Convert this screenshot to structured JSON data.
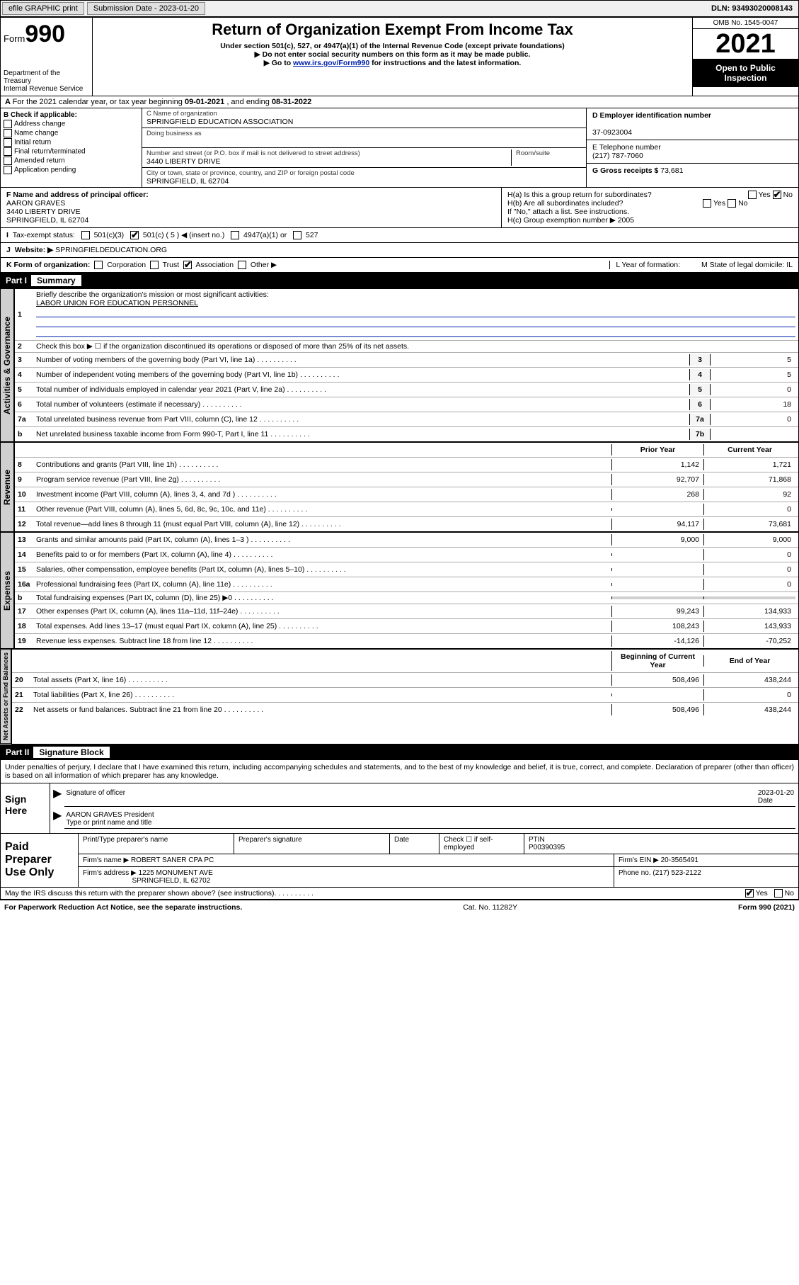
{
  "topbar": {
    "efile": "efile GRAPHIC print",
    "submission_label": "Submission Date - ",
    "submission_date": "2023-01-20",
    "dln_label": "DLN: ",
    "dln": "93493020008143"
  },
  "header": {
    "form_word": "Form",
    "form_num": "990",
    "dept": "Department of the Treasury",
    "irs": "Internal Revenue Service",
    "title": "Return of Organization Exempt From Income Tax",
    "sub1": "Under section 501(c), 527, or 4947(a)(1) of the Internal Revenue Code (except private foundations)",
    "sub2": "Do not enter social security numbers on this form as it may be made public.",
    "sub3_pre": "Go to ",
    "sub3_link": "www.irs.gov/Form990",
    "sub3_post": " for instructions and the latest information.",
    "omb": "OMB No. 1545-0047",
    "year": "2021",
    "open": "Open to Public Inspection"
  },
  "lineA": {
    "text": "For the 2021 calendar year, or tax year beginning ",
    "begin": "09-01-2021",
    "mid": " , and ending ",
    "end": "08-31-2022"
  },
  "boxB": {
    "title": "B Check if applicable:",
    "opts": [
      "Address change",
      "Name change",
      "Initial return",
      "Final return/terminated",
      "Amended return",
      "Application pending"
    ]
  },
  "boxC": {
    "name_label": "C Name of organization",
    "name": "SPRINGFIELD EDUCATION ASSOCIATION",
    "dba_label": "Doing business as",
    "street_label": "Number and street (or P.O. box if mail is not delivered to street address)",
    "room_label": "Room/suite",
    "street": "3440 LIBERTY DRIVE",
    "city_label": "City or town, state or province, country, and ZIP or foreign postal code",
    "city": "SPRINGFIELD, IL  62704"
  },
  "boxD": {
    "ein_label": "D Employer identification number",
    "ein": "37-0923004",
    "phone_label": "E Telephone number",
    "phone": "(217) 787-7060",
    "gross_label": "G Gross receipts $ ",
    "gross": "73,681"
  },
  "boxF": {
    "label": "F Name and address of principal officer:",
    "name": "AARON GRAVES",
    "street": "3440 LIBERTY DRIVE",
    "city": "SPRINGFIELD, IL  62704"
  },
  "boxH": {
    "a": "H(a)  Is this a group return for subordinates?",
    "a_yes": "Yes",
    "a_no": "No",
    "b": "H(b)  Are all subordinates included?",
    "b_note": "If \"No,\" attach a list. See instructions.",
    "c": "H(c)  Group exemption number ▶ ",
    "c_val": "2005"
  },
  "boxI": {
    "label": "Tax-exempt status:",
    "o1": "501(c)(3)",
    "o2": "501(c) ( 5 ) ◀ (insert no.)",
    "o3": "4947(a)(1) or",
    "o4": "527"
  },
  "boxJ": {
    "label": "Website: ▶ ",
    "val": "SPRINGFIELDEDUCATION.ORG"
  },
  "boxK": {
    "label": "K Form of organization:",
    "opts": [
      "Corporation",
      "Trust",
      "Association",
      "Other ▶"
    ],
    "checked_idx": 2,
    "L": "L Year of formation:",
    "M": "M State of legal domicile: IL"
  },
  "part1": {
    "num": "Part I",
    "title": "Summary"
  },
  "gov": {
    "tab": "Activities & Governance",
    "l1": "Briefly describe the organization's mission or most significant activities:",
    "l1v": "LABOR UNION FOR EDUCATION PERSONNEL",
    "l2": "Check this box ▶ ☐  if the organization discontinued its operations or disposed of more than 25% of its net assets.",
    "lines": [
      {
        "n": "3",
        "t": "Number of voting members of the governing body (Part VI, line 1a)",
        "box": "3",
        "v": "5"
      },
      {
        "n": "4",
        "t": "Number of independent voting members of the governing body (Part VI, line 1b)",
        "box": "4",
        "v": "5"
      },
      {
        "n": "5",
        "t": "Total number of individuals employed in calendar year 2021 (Part V, line 2a)",
        "box": "5",
        "v": "0"
      },
      {
        "n": "6",
        "t": "Total number of volunteers (estimate if necessary)",
        "box": "6",
        "v": "18"
      },
      {
        "n": "7a",
        "t": "Total unrelated business revenue from Part VIII, column (C), line 12",
        "box": "7a",
        "v": "0"
      },
      {
        "n": "b",
        "t": "Net unrelated business taxable income from Form 990-T, Part I, line 11",
        "box": "7b",
        "v": ""
      }
    ]
  },
  "rev": {
    "tab": "Revenue",
    "hprior": "Prior Year",
    "hcurr": "Current Year",
    "lines": [
      {
        "n": "8",
        "t": "Contributions and grants (Part VIII, line 1h)",
        "p": "1,142",
        "c": "1,721"
      },
      {
        "n": "9",
        "t": "Program service revenue (Part VIII, line 2g)",
        "p": "92,707",
        "c": "71,868"
      },
      {
        "n": "10",
        "t": "Investment income (Part VIII, column (A), lines 3, 4, and 7d )",
        "p": "268",
        "c": "92"
      },
      {
        "n": "11",
        "t": "Other revenue (Part VIII, column (A), lines 5, 6d, 8c, 9c, 10c, and 11e)",
        "p": "",
        "c": "0"
      },
      {
        "n": "12",
        "t": "Total revenue—add lines 8 through 11 (must equal Part VIII, column (A), line 12)",
        "p": "94,117",
        "c": "73,681"
      }
    ]
  },
  "exp": {
    "tab": "Expenses",
    "lines": [
      {
        "n": "13",
        "t": "Grants and similar amounts paid (Part IX, column (A), lines 1–3 )",
        "p": "9,000",
        "c": "9,000"
      },
      {
        "n": "14",
        "t": "Benefits paid to or for members (Part IX, column (A), line 4)",
        "p": "",
        "c": "0"
      },
      {
        "n": "15",
        "t": "Salaries, other compensation, employee benefits (Part IX, column (A), lines 5–10)",
        "p": "",
        "c": "0"
      },
      {
        "n": "16a",
        "t": "Professional fundraising fees (Part IX, column (A), line 11e)",
        "p": "",
        "c": "0"
      },
      {
        "n": "b",
        "t": "Total fundraising expenses (Part IX, column (D), line 25) ▶0",
        "p": "gray",
        "c": "gray"
      },
      {
        "n": "17",
        "t": "Other expenses (Part IX, column (A), lines 11a–11d, 11f–24e)",
        "p": "99,243",
        "c": "134,933"
      },
      {
        "n": "18",
        "t": "Total expenses. Add lines 13–17 (must equal Part IX, column (A), line 25)",
        "p": "108,243",
        "c": "143,933"
      },
      {
        "n": "19",
        "t": "Revenue less expenses. Subtract line 18 from line 12",
        "p": "-14,126",
        "c": "-70,252"
      }
    ]
  },
  "net": {
    "tab": "Net Assets or Fund Balances",
    "hprior": "Beginning of Current Year",
    "hcurr": "End of Year",
    "lines": [
      {
        "n": "20",
        "t": "Total assets (Part X, line 16)",
        "p": "508,496",
        "c": "438,244"
      },
      {
        "n": "21",
        "t": "Total liabilities (Part X, line 26)",
        "p": "",
        "c": "0"
      },
      {
        "n": "22",
        "t": "Net assets or fund balances. Subtract line 21 from line 20",
        "p": "508,496",
        "c": "438,244"
      }
    ]
  },
  "part2": {
    "num": "Part II",
    "title": "Signature Block"
  },
  "penalty": "Under penalties of perjury, I declare that I have examined this return, including accompanying schedules and statements, and to the best of my knowledge and belief, it is true, correct, and complete. Declaration of preparer (other than officer) is based on all information of which preparer has any knowledge.",
  "sign": {
    "label": "Sign Here",
    "sig": "Signature of officer",
    "date_label": "Date",
    "date": "2023-01-20",
    "name": "AARON GRAVES President",
    "type": "Type or print name and title"
  },
  "prep": {
    "label": "Paid Preparer Use Only",
    "h1": "Print/Type preparer's name",
    "h2": "Preparer's signature",
    "h3": "Date",
    "h4": "Check ☐ if self-employed",
    "h5": "PTIN",
    "ptin": "P00390395",
    "firm_label": "Firm's name    ▶ ",
    "firm": "ROBERT SANER CPA PC",
    "ein_label": "Firm's EIN ▶ ",
    "ein": "20-3565491",
    "addr_label": "Firm's address ▶ ",
    "addr1": "1225 MONUMENT AVE",
    "addr2": "SPRINGFIELD, IL  62702",
    "phone_label": "Phone no. ",
    "phone": "(217) 523-2122"
  },
  "discuss": "May the IRS discuss this return with the preparer shown above? (see instructions)",
  "discuss_yes": "Yes",
  "discuss_no": "No",
  "footer": {
    "left": "For Paperwork Reduction Act Notice, see the separate instructions.",
    "mid": "Cat. No. 11282Y",
    "right": "Form 990 (2021)"
  }
}
